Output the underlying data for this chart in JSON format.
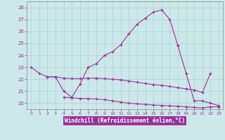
{
  "x": [
    0,
    1,
    2,
    3,
    4,
    5,
    6,
    7,
    8,
    9,
    10,
    11,
    12,
    13,
    14,
    15,
    16,
    17,
    18,
    19,
    20,
    21,
    22,
    23
  ],
  "line_main": [
    23.0,
    22.5,
    22.2,
    22.2,
    21.0,
    20.5,
    21.6,
    23.0,
    23.3,
    24.0,
    24.3,
    24.9,
    25.8,
    26.6,
    27.1,
    27.6,
    27.8,
    27.0,
    24.8,
    null,
    null,
    null,
    null,
    null
  ],
  "line_tail": [
    null,
    null,
    null,
    null,
    null,
    null,
    null,
    null,
    null,
    null,
    null,
    null,
    null,
    null,
    null,
    null,
    null,
    null,
    24.8,
    22.5,
    20.2,
    20.2,
    20.0,
    19.8
  ],
  "line_flat1": [
    null,
    null,
    22.2,
    22.2,
    22.1,
    22.05,
    22.05,
    22.1,
    22.1,
    22.05,
    22.0,
    21.95,
    21.85,
    21.75,
    21.65,
    21.55,
    21.5,
    21.4,
    21.3,
    21.2,
    21.1,
    20.9,
    22.5,
    null
  ],
  "line_flat2": [
    null,
    null,
    null,
    null,
    20.5,
    20.45,
    20.4,
    20.38,
    20.35,
    20.3,
    20.2,
    20.1,
    20.0,
    19.95,
    19.9,
    19.85,
    19.82,
    19.78,
    19.75,
    19.7,
    19.65,
    19.6,
    19.7,
    19.7
  ],
  "bg_color": "#cce8e8",
  "grid_color": "#aad4d4",
  "line_color": "#993399",
  "xlabel": "Windchill (Refroidissement éolien,°C)",
  "ylabel_ticks": [
    20,
    21,
    22,
    23,
    24,
    25,
    26,
    27,
    28
  ],
  "xlim": [
    -0.5,
    23.5
  ],
  "ylim": [
    19.5,
    28.5
  ]
}
